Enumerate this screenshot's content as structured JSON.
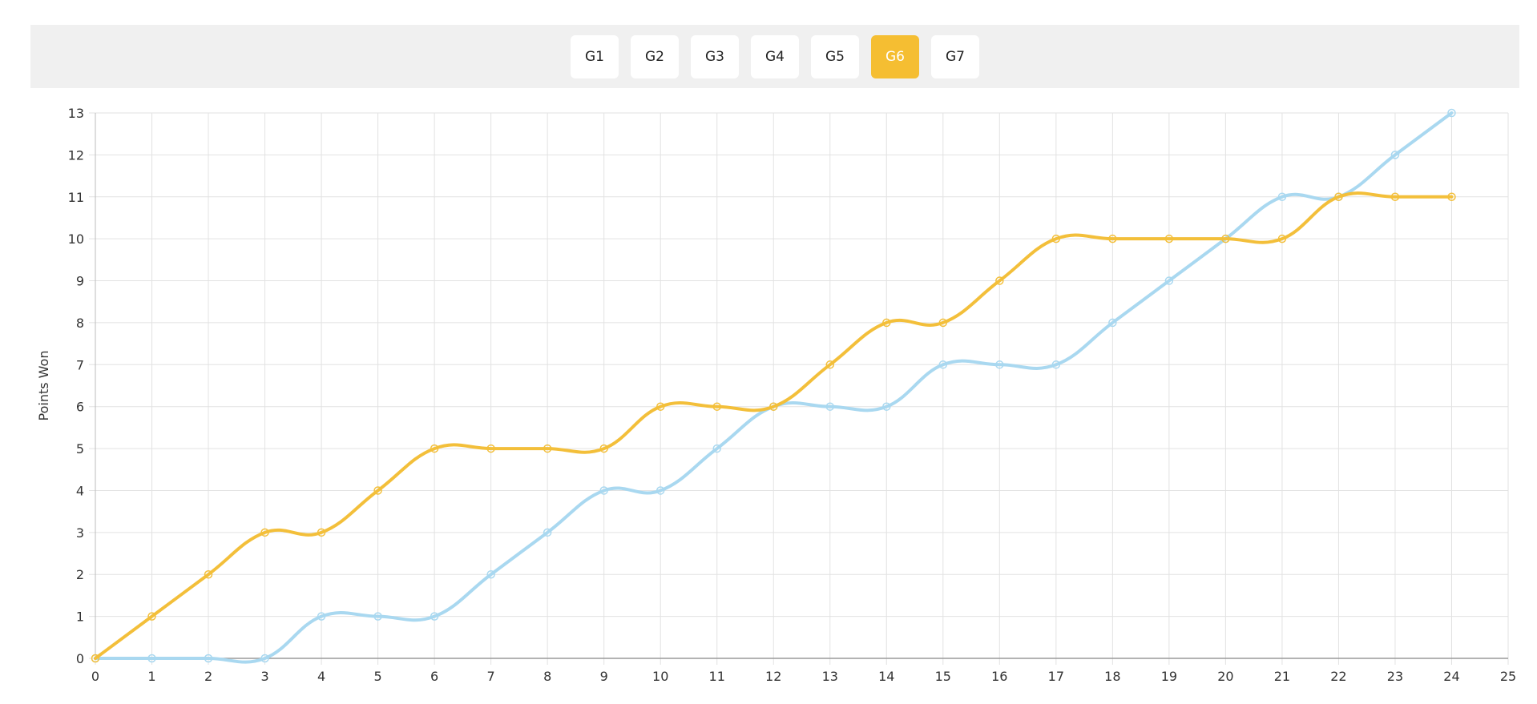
{
  "tabs": [
    {
      "label": "G1",
      "active": false
    },
    {
      "label": "G2",
      "active": false
    },
    {
      "label": "G3",
      "active": false
    },
    {
      "label": "G4",
      "active": false
    },
    {
      "label": "G5",
      "active": false
    },
    {
      "label": "G6",
      "active": true
    },
    {
      "label": "G7",
      "active": false
    }
  ],
  "chart_data": {
    "type": "line",
    "title": "",
    "xlabel": "",
    "ylabel": "Points Won",
    "xlim": [
      0,
      25
    ],
    "ylim": [
      0,
      13
    ],
    "x_ticks": [
      0,
      1,
      2,
      3,
      4,
      5,
      6,
      7,
      8,
      9,
      10,
      11,
      12,
      13,
      14,
      15,
      16,
      17,
      18,
      19,
      20,
      21,
      22,
      23,
      24,
      25
    ],
    "y_ticks": [
      0,
      1,
      2,
      3,
      4,
      5,
      6,
      7,
      8,
      9,
      10,
      11,
      12,
      13
    ],
    "grid": true,
    "legend": "none",
    "colors": {
      "series1": "#f3bf3a",
      "series2": "#a9d8f0"
    },
    "series": [
      {
        "x": [
          0,
          1,
          2,
          3,
          4,
          5,
          6,
          7,
          8,
          9,
          10,
          11,
          12,
          13,
          14,
          15,
          16,
          17,
          18,
          19,
          20,
          21,
          22,
          23,
          24
        ],
        "values": [
          0,
          1,
          2,
          3,
          3,
          4,
          5,
          5,
          5,
          5,
          6,
          6,
          6,
          7,
          8,
          8,
          9,
          10,
          10,
          10,
          10,
          10,
          11,
          11,
          11
        ]
      },
      {
        "x": [
          0,
          1,
          2,
          3,
          4,
          5,
          6,
          7,
          8,
          9,
          10,
          11,
          12,
          13,
          14,
          15,
          16,
          17,
          18,
          19,
          20,
          21,
          22,
          23,
          24
        ],
        "values": [
          0,
          0,
          0,
          0,
          1,
          1,
          1,
          2,
          3,
          4,
          4,
          5,
          6,
          6,
          6,
          7,
          7,
          7,
          8,
          9,
          10,
          11,
          11,
          12,
          13
        ]
      }
    ]
  }
}
